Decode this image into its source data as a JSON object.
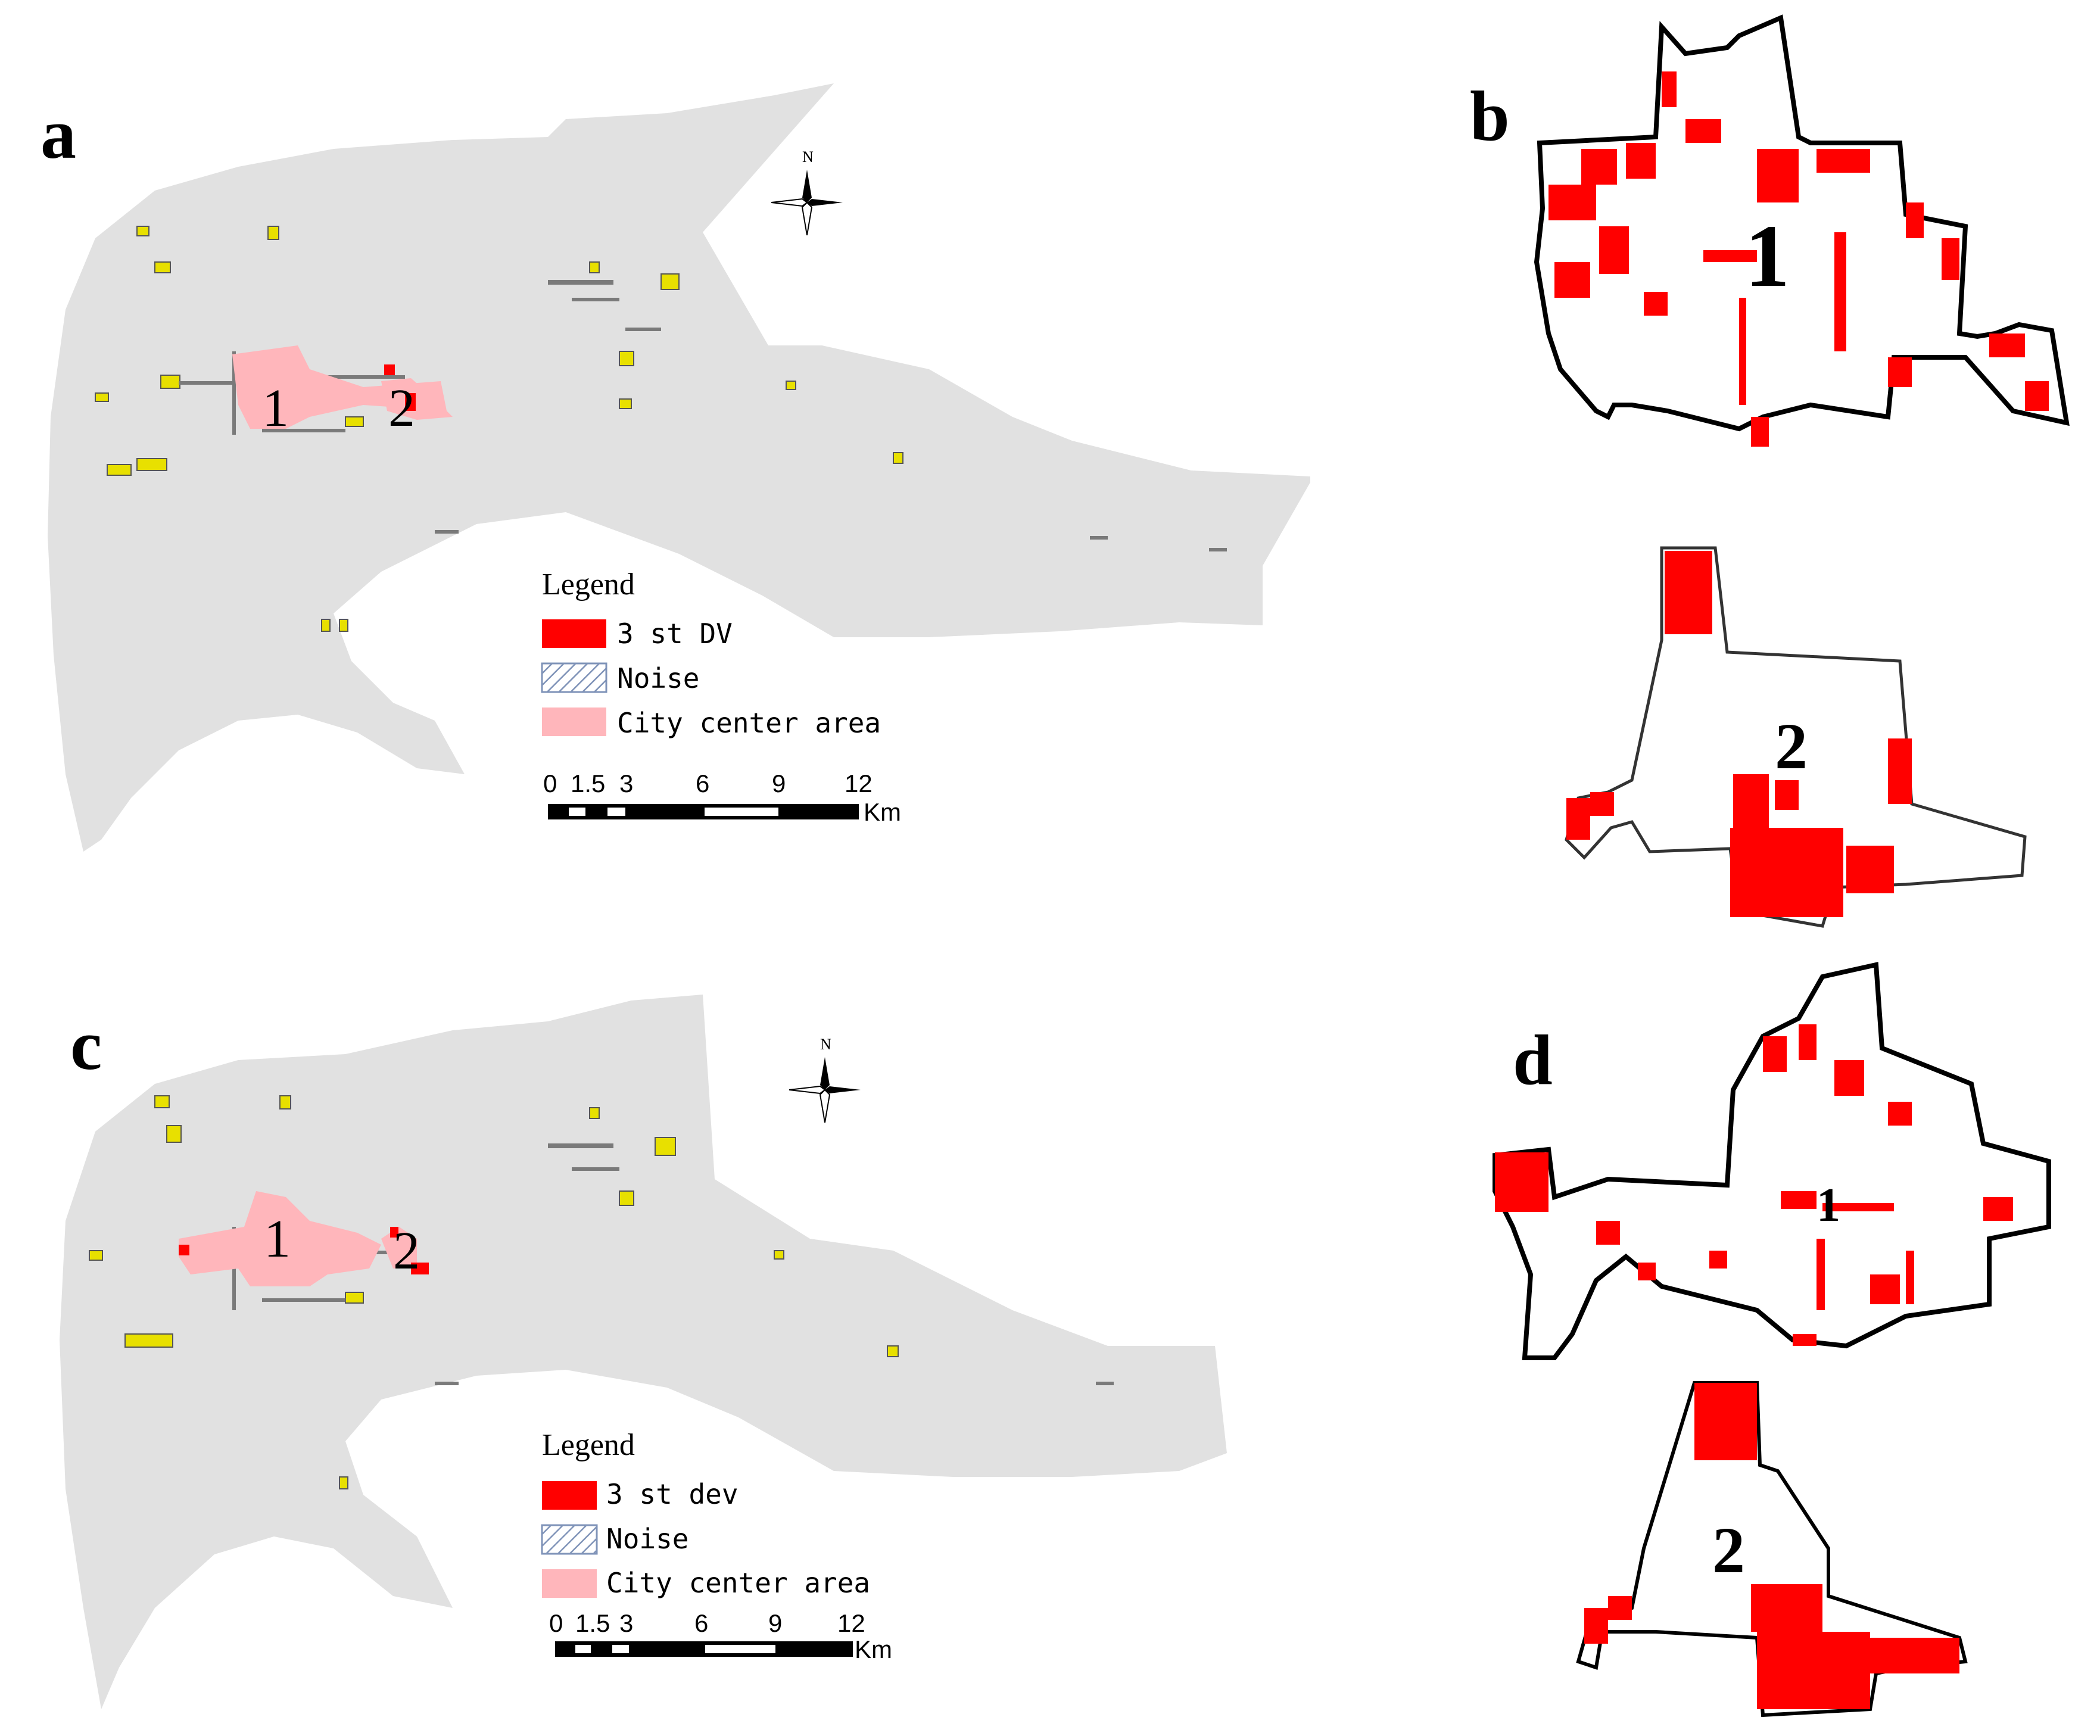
{
  "colors": {
    "land": "#e1e1e1",
    "highlight": "#ff0000",
    "city_center": "#ffb6bb",
    "buildings": "#e8e000",
    "noise_stroke": "#7f93b8"
  },
  "panels": {
    "a": {
      "label": "a",
      "areas": [
        "1",
        "2"
      ],
      "legend": {
        "title": "Legend",
        "items": [
          {
            "label": "3 st DV",
            "swatch": "solid-red"
          },
          {
            "label": "Noise",
            "swatch": "hatched"
          },
          {
            "label": "City center area",
            "swatch": "solid-pink"
          }
        ]
      },
      "scalebar": {
        "ticks": [
          "0",
          "1.5",
          "3",
          "6",
          "9",
          "12"
        ],
        "unit": "Km"
      },
      "north": "N"
    },
    "b": {
      "label": "b",
      "areas": [
        "1",
        "2"
      ]
    },
    "c": {
      "label": "c",
      "areas": [
        "1",
        "2"
      ],
      "legend": {
        "title": "Legend",
        "items": [
          {
            "label": "3 st dev",
            "swatch": "solid-red"
          },
          {
            "label": "Noise",
            "swatch": "hatched"
          },
          {
            "label": "City center area",
            "swatch": "solid-pink"
          }
        ]
      },
      "scalebar": {
        "ticks": [
          "0",
          "1.5",
          "3",
          "6",
          "9",
          "12"
        ],
        "unit": "Km"
      },
      "north": "N"
    },
    "d": {
      "label": "d",
      "areas": [
        "1",
        "2"
      ]
    }
  }
}
